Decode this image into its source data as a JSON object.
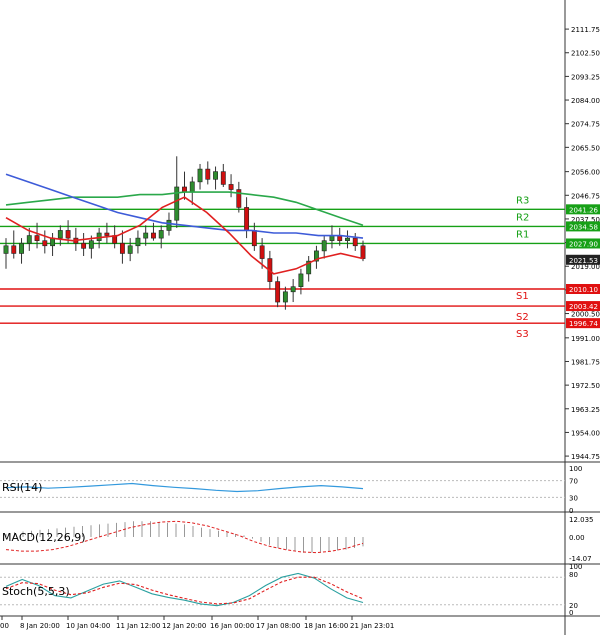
{
  "chart_data": {
    "type": "candlestick",
    "main": {
      "ylim": [
        1944.0,
        2120.0
      ],
      "y_ticks": [
        "2111.75",
        "2102.50",
        "2093.25",
        "2084.00",
        "2074.75",
        "2065.50",
        "2056.00",
        "2046.75",
        "2037.50",
        "2028.25",
        "2019.00",
        "2009.75",
        "2000.50",
        "1991.00",
        "1981.75",
        "1972.50",
        "1963.25",
        "1954.00",
        "1944.75"
      ],
      "x_ticks": [
        "00",
        "8 Jan 20:00",
        "10 Jan 04:00",
        "11 Jan 12:00",
        "12 Jan 20:00",
        "16 Jan 00:00",
        "17 Jan 08:00",
        "18 Jan 16:00",
        "21 Jan 23:01"
      ],
      "candles": [
        [
          2024,
          2030,
          2018,
          2027
        ],
        [
          2027,
          2033,
          2022,
          2024
        ],
        [
          2024,
          2030,
          2020,
          2028
        ],
        [
          2028,
          2034,
          2025,
          2031
        ],
        [
          2031,
          2036,
          2026,
          2029
        ],
        [
          2029,
          2033,
          2024,
          2027
        ],
        [
          2027,
          2032,
          2023,
          2030
        ],
        [
          2030,
          2035,
          2027,
          2033
        ],
        [
          2033,
          2037,
          2028,
          2030
        ],
        [
          2030,
          2034,
          2025,
          2028
        ],
        [
          2028,
          2032,
          2023,
          2026
        ],
        [
          2026,
          2031,
          2022,
          2029
        ],
        [
          2029,
          2034,
          2026,
          2032
        ],
        [
          2032,
          2036,
          2028,
          2031
        ],
        [
          2031,
          2035,
          2026,
          2028
        ],
        [
          2028,
          2033,
          2020,
          2024
        ],
        [
          2024,
          2030,
          2021,
          2027
        ],
        [
          2027,
          2033,
          2024,
          2030
        ],
        [
          2030,
          2035,
          2027,
          2032
        ],
        [
          2032,
          2036,
          2029,
          2030
        ],
        [
          2030,
          2035,
          2026,
          2033
        ],
        [
          2033,
          2040,
          2031,
          2037
        ],
        [
          2037,
          2062,
          2034,
          2050
        ],
        [
          2050,
          2056,
          2045,
          2048
        ],
        [
          2048,
          2054,
          2043,
          2052
        ],
        [
          2052,
          2059,
          2049,
          2057
        ],
        [
          2057,
          2060,
          2051,
          2053
        ],
        [
          2053,
          2058,
          2049,
          2056
        ],
        [
          2056,
          2059,
          2050,
          2051
        ],
        [
          2051,
          2055,
          2046,
          2049
        ],
        [
          2049,
          2052,
          2040,
          2042
        ],
        [
          2042,
          2046,
          2030,
          2033
        ],
        [
          2033,
          2036,
          2025,
          2027
        ],
        [
          2027,
          2030,
          2018,
          2022
        ],
        [
          2022,
          2025,
          2010,
          2013
        ],
        [
          2013,
          2015,
          2003,
          2005
        ],
        [
          2005,
          2011,
          2002,
          2009
        ],
        [
          2009,
          2014,
          2005,
          2011
        ],
        [
          2011,
          2018,
          2008,
          2016
        ],
        [
          2016,
          2023,
          2013,
          2021
        ],
        [
          2021,
          2027,
          2018,
          2025
        ],
        [
          2025,
          2031,
          2022,
          2029
        ],
        [
          2029,
          2035,
          2026,
          2031
        ],
        [
          2031,
          2034,
          2027,
          2029
        ],
        [
          2029,
          2033,
          2026,
          2030
        ],
        [
          2030,
          2032,
          2025,
          2027
        ],
        [
          2027,
          2029,
          2021,
          2022
        ]
      ],
      "levels": [
        {
          "name": "R3",
          "value": "2041.26",
          "color": "#16a016"
        },
        {
          "name": "R2",
          "value": "2034.58",
          "color": "#16a016"
        },
        {
          "name": "R1",
          "value": "2027.90",
          "color": "#16a016"
        },
        {
          "name": "",
          "value": "2021.53",
          "color": "#222222"
        },
        {
          "name": "S1",
          "value": "2010.10",
          "color": "#e01010"
        },
        {
          "name": "S2",
          "value": "2003.42",
          "color": "#e01010"
        },
        {
          "name": "S3",
          "value": "1996.74",
          "color": "#e01010"
        }
      ],
      "ma_blue": [
        2055,
        2052,
        2049,
        2046,
        2043,
        2040,
        2038,
        2036,
        2035,
        2034,
        2033,
        2033,
        2032,
        2032,
        2031,
        2031,
        2030
      ],
      "ma_green": [
        2043,
        2044,
        2045,
        2046,
        2046,
        2046,
        2047,
        2047,
        2048,
        2048,
        2048,
        2047,
        2046,
        2044,
        2041,
        2038,
        2035
      ],
      "ma_red": [
        2038,
        2033,
        2030,
        2029,
        2030,
        2031,
        2035,
        2042,
        2046,
        2040,
        2032,
        2023,
        2016,
        2018,
        2022,
        2024,
        2022
      ]
    },
    "rsi": {
      "label": "RSI(14)",
      "ticks": [
        "100",
        "70",
        "30",
        "0"
      ],
      "values": [
        53,
        55,
        52,
        54,
        57,
        60,
        63,
        58,
        54,
        51,
        47,
        44,
        46,
        51,
        55,
        58,
        55,
        51
      ]
    },
    "macd": {
      "label": "MACD(12,26,9)",
      "ticks": [
        "12.035",
        "0.00",
        "-14.07"
      ]
    },
    "stoch": {
      "label": "Stoch(5,5,3)",
      "ticks": [
        "100",
        "80",
        "20",
        "0"
      ],
      "k": [
        60,
        75,
        62,
        40,
        35,
        50,
        65,
        72,
        58,
        44,
        36,
        30,
        22,
        18,
        25,
        40,
        62,
        80,
        88,
        78,
        55,
        35,
        25
      ],
      "d": [
        55,
        68,
        66,
        52,
        42,
        46,
        58,
        67,
        64,
        52,
        42,
        34,
        26,
        22,
        24,
        33,
        52,
        70,
        80,
        80,
        66,
        48,
        33
      ]
    }
  }
}
